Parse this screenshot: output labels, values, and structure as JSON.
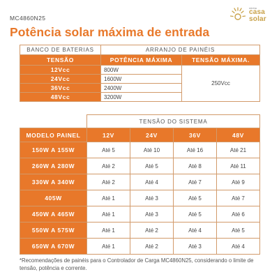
{
  "model": "MC4860N25",
  "title": "Potência solar máxima de entrada",
  "logo": {
    "tagline": "minha",
    "line1": "casa",
    "line2": "solar"
  },
  "table1": {
    "battery_bank_header": "BANCO DE BATERIAS",
    "panel_array_header": "ARRANJO DE PAINÉIS",
    "col_voltage": "TENSÃO",
    "col_max_power": "POTÊNCIA MÁXIMA",
    "col_max_voltage": "TENSÃO MÁXIMA.",
    "rows": [
      {
        "voltage": "12Vcc",
        "power": "800W"
      },
      {
        "voltage": "24Vcc",
        "power": "1600W"
      },
      {
        "voltage": "36Vcc",
        "power": "2400W"
      },
      {
        "voltage": "48Vcc",
        "power": "3200W"
      }
    ],
    "max_voltage": "250Vcc"
  },
  "table2": {
    "system_voltage_header": "TENSÃO DO SISTEMA",
    "col_model": "MODELO PAINEL",
    "voltages": [
      "12V",
      "24V",
      "36V",
      "48V"
    ],
    "rows": [
      {
        "model": "150W A 155W",
        "cells": [
          "Até 5",
          "Até 10",
          "Até 16",
          "Até 21"
        ]
      },
      {
        "model": "260W A 280W",
        "cells": [
          "Até 2",
          "Até 5",
          "Até 8",
          "Até 11"
        ]
      },
      {
        "model": "330W A 340W",
        "cells": [
          "Até 2",
          "Até 4",
          "Até 7",
          "Até 9"
        ]
      },
      {
        "model": "405W",
        "cells": [
          "Até 1",
          "Até 3",
          "Até 5",
          "Até 7"
        ]
      },
      {
        "model": "450W A 465W",
        "cells": [
          "Até 1",
          "Até 3",
          "Até 5",
          "Até 6"
        ]
      },
      {
        "model": "550W A 575W",
        "cells": [
          "Até 1",
          "Até 2",
          "Até 4",
          "Até 5"
        ]
      },
      {
        "model": "650W A 670W",
        "cells": [
          "Até 1",
          "Até 2",
          "Até 3",
          "Até 4"
        ]
      }
    ]
  },
  "footnote": "*Recomendações de painéis para o Controlador de Carga MC4860N25, considerando o limite de tensão, potência e corrente.",
  "colors": {
    "accent": "#e8782a",
    "border": "#d29a6a",
    "logo": "#c9a24a"
  }
}
